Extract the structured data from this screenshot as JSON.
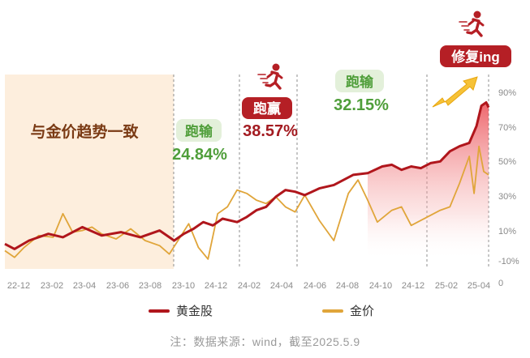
{
  "chart_data": {
    "type": "line",
    "x": [
      "22-12",
      "23-02",
      "23-04",
      "23-06",
      "23-08",
      "23-10",
      "24-12",
      "24-02",
      "24-04",
      "24-06",
      "24-08",
      "24-10",
      "24-12",
      "25-02",
      "25-04"
    ],
    "x_tick_labels": [
      "22-12",
      "23-02",
      "23-04",
      "23-06",
      "23-08",
      "23-10",
      "24-12",
      "24-02",
      "24-04",
      "24-06",
      "24-08",
      "24-10",
      "24-12",
      "25-02",
      "25-04"
    ],
    "y_tick_labels": [
      "90%",
      "70%",
      "50%",
      "30%",
      "10%",
      "-10%"
    ],
    "extra_tick_label": "0",
    "ylim": [
      -10,
      90
    ],
    "grid": false,
    "legend_position": "bottom",
    "series": [
      {
        "name": "黄金股",
        "color": "#b0161c",
        "x": [
          0,
          0.02,
          0.05,
          0.09,
          0.12,
          0.16,
          0.2,
          0.24,
          0.28,
          0.32,
          0.35,
          0.37,
          0.39,
          0.41,
          0.43,
          0.45,
          0.48,
          0.5,
          0.52,
          0.54,
          0.56,
          0.58,
          0.6,
          0.62,
          0.65,
          0.68,
          0.72,
          0.75,
          0.78,
          0.8,
          0.82,
          0.84,
          0.86,
          0.88,
          0.9,
          0.92,
          0.94,
          0.96,
          0.975,
          0.985,
          0.995,
          1
        ],
        "y": [
          0,
          -3,
          2,
          6,
          4,
          10,
          5,
          7,
          4,
          8,
          2,
          6,
          9,
          13,
          11,
          15,
          13,
          16,
          20,
          22,
          28,
          32,
          31,
          29,
          33,
          35,
          41,
          42,
          46,
          47,
          44,
          46,
          45,
          48,
          49,
          55,
          58,
          60,
          70,
          82,
          84,
          81
        ]
      },
      {
        "name": "金价",
        "color": "#e0a53a",
        "x": [
          0,
          0.02,
          0.04,
          0.07,
          0.1,
          0.12,
          0.14,
          0.16,
          0.18,
          0.2,
          0.23,
          0.26,
          0.29,
          0.32,
          0.34,
          0.36,
          0.38,
          0.4,
          0.42,
          0.44,
          0.46,
          0.48,
          0.5,
          0.52,
          0.54,
          0.56,
          0.58,
          0.6,
          0.62,
          0.65,
          0.68,
          0.71,
          0.73,
          0.75,
          0.77,
          0.8,
          0.82,
          0.84,
          0.86,
          0.88,
          0.9,
          0.92,
          0.94,
          0.96,
          0.97,
          0.98,
          0.99,
          1
        ],
        "y": [
          -4,
          -8,
          -2,
          5,
          4,
          18,
          7,
          8,
          10,
          6,
          3,
          9,
          2,
          -1,
          -6,
          3,
          12,
          -2,
          -9,
          18,
          22,
          32,
          30,
          26,
          24,
          28,
          22,
          19,
          29,
          14,
          2,
          30,
          38,
          26,
          13,
          20,
          22,
          11,
          14,
          17,
          20,
          22,
          36,
          52,
          30,
          58,
          43,
          41
        ]
      }
    ],
    "annotations": [
      {
        "title": "与金价趋势一致"
      },
      {
        "title": "跑输",
        "value": "24.84%"
      },
      {
        "title": "跑赢",
        "value": "38.57%"
      },
      {
        "title": "跑输",
        "value": "32.15%"
      },
      {
        "title": "修复ing"
      }
    ]
  },
  "legend": {
    "items": [
      {
        "label": "黄金股"
      },
      {
        "label": "金价"
      }
    ]
  },
  "footer": {
    "note": "注：数据来源：wind，截至2025.5.9"
  },
  "colors": {
    "stock": "#b0161c",
    "gold": "#e0a53a",
    "outperform": "#b51f25",
    "underperform": "#4f9e3a",
    "shaded_region": "#fdeedd"
  }
}
